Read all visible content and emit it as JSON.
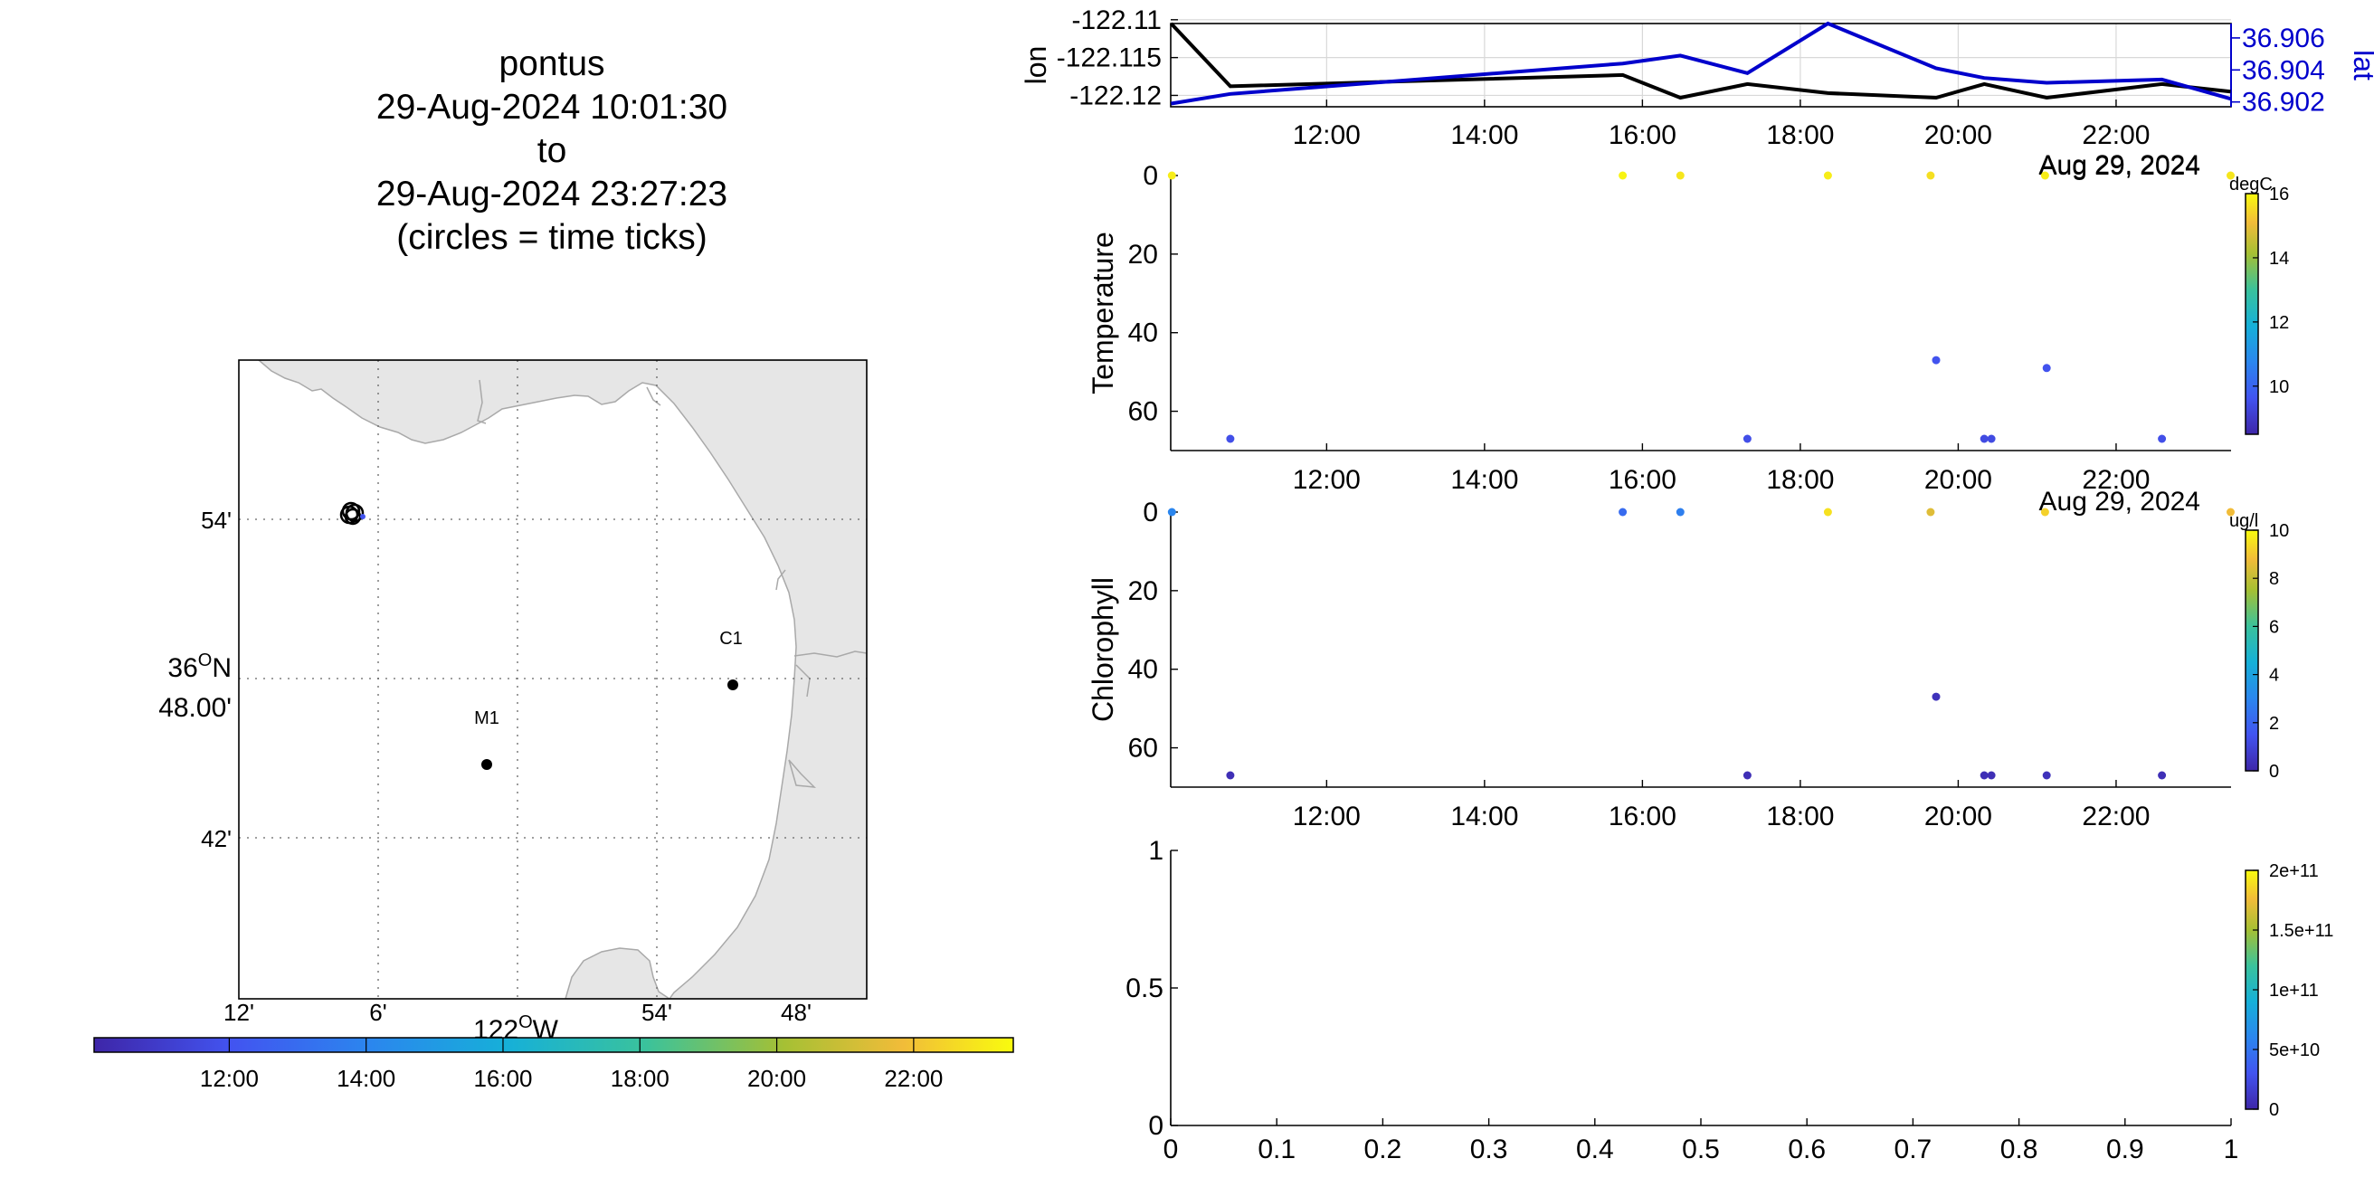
{
  "title": {
    "lines": [
      "pontus",
      "29-Aug-2024 10:01:30",
      "to",
      "29-Aug-2024 23:27:23",
      "(circles = time ticks)"
    ]
  },
  "map": {
    "lon_ticks": [
      "12'",
      "6'",
      "54'",
      "48'"
    ],
    "lon_major": "122",
    "lon_suffix": "W",
    "lat_ticks": [
      "54'",
      "42'"
    ],
    "lat_major": "36",
    "lat_suffix": "N",
    "lat_minutes": "48.00'",
    "moorings": [
      {
        "name": "M1",
        "lon": -121.982,
        "lat": 36.747
      },
      {
        "name": "C1",
        "lon": -121.846,
        "lat": 36.797
      }
    ],
    "track_position": {
      "lon": -122.118,
      "lat": 36.904
    }
  },
  "time_colorbar": {
    "ticks": [
      "12:00",
      "14:00",
      "16:00",
      "18:00",
      "20:00",
      "22:00"
    ],
    "range_hours": [
      10.025,
      23.456
    ]
  },
  "chart_data": [
    {
      "type": "line",
      "panel": "lon-lat",
      "ylabel": "lon",
      "ylabel_right": "lat",
      "x_ticks": [
        "12:00",
        "14:00",
        "16:00",
        "18:00",
        "20:00",
        "22:00"
      ],
      "xlim_hours": [
        10.025,
        23.456
      ],
      "y_ticks_left": [
        "-122.11",
        "-122.115",
        "-122.12"
      ],
      "ylim_left": [
        -122.1215,
        -122.1105
      ],
      "y_ticks_right": [
        "36.906",
        "36.904",
        "36.902"
      ],
      "ylim_right": [
        36.9017,
        36.9069
      ],
      "series": [
        {
          "name": "lon",
          "color": "#000000",
          "axis": "left",
          "x": [
            10.03,
            10.78,
            15.75,
            16.48,
            17.33,
            18.35,
            19.72,
            20.33,
            21.12,
            22.58,
            23.45
          ],
          "y": [
            -122.1105,
            -122.1188,
            -122.1173,
            -122.1203,
            -122.1185,
            -122.1197,
            -122.1203,
            -122.1185,
            -122.1203,
            -122.1185,
            -122.1195
          ]
        },
        {
          "name": "lat",
          "color": "#0000cc",
          "axis": "right",
          "x": [
            10.03,
            10.78,
            15.75,
            16.48,
            17.33,
            18.35,
            19.72,
            20.33,
            21.12,
            22.58,
            23.45
          ],
          "y": [
            36.9019,
            36.9025,
            36.9044,
            36.9049,
            36.9038,
            36.9069,
            36.9041,
            36.9035,
            36.9032,
            36.9034,
            36.9022
          ]
        }
      ],
      "date_label": "Aug 29, 2024"
    },
    {
      "type": "scatter",
      "panel": "temperature",
      "ylabel": "Temperature",
      "x_ticks": [
        "12:00",
        "14:00",
        "16:00",
        "18:00",
        "20:00",
        "22:00"
      ],
      "xlim_hours": [
        10.025,
        23.456
      ],
      "y_ticks": [
        "0",
        "20",
        "40",
        "60"
      ],
      "ylim": [
        0,
        70
      ],
      "y_reversed": true,
      "date_label": "Aug 29, 2024",
      "colorbar": {
        "unit": "degC",
        "ticks": [
          "16",
          "14",
          "12",
          "10"
        ],
        "range": [
          8.5,
          16
        ]
      },
      "points": [
        {
          "x": 10.04,
          "y": 0,
          "c": 15.8
        },
        {
          "x": 15.75,
          "y": 0,
          "c": 15.9
        },
        {
          "x": 16.48,
          "y": 0,
          "c": 15.7
        },
        {
          "x": 18.35,
          "y": 0,
          "c": 15.8
        },
        {
          "x": 19.65,
          "y": 0,
          "c": 15.6
        },
        {
          "x": 21.1,
          "y": 0,
          "c": 15.8
        },
        {
          "x": 23.45,
          "y": 0,
          "c": 15.7
        },
        {
          "x": 10.78,
          "y": 67,
          "c": 9.5
        },
        {
          "x": 17.33,
          "y": 67,
          "c": 9.5
        },
        {
          "x": 19.72,
          "y": 47,
          "c": 9.6
        },
        {
          "x": 20.33,
          "y": 67,
          "c": 9.4
        },
        {
          "x": 20.42,
          "y": 67,
          "c": 9.4
        },
        {
          "x": 21.12,
          "y": 49,
          "c": 9.6
        },
        {
          "x": 22.58,
          "y": 67,
          "c": 9.5
        }
      ]
    },
    {
      "type": "scatter",
      "panel": "chlorophyll",
      "ylabel": "Chlorophyll",
      "x_ticks": [
        "12:00",
        "14:00",
        "16:00",
        "18:00",
        "20:00",
        "22:00"
      ],
      "xlim_hours": [
        10.025,
        23.456
      ],
      "y_ticks": [
        "0",
        "20",
        "40",
        "60"
      ],
      "ylim": [
        0,
        70
      ],
      "y_reversed": true,
      "date_label": "Aug 29, 2024",
      "colorbar": {
        "unit": "ug/l",
        "ticks": [
          "10",
          "8",
          "6",
          "4",
          "2",
          "0"
        ],
        "range": [
          0,
          10
        ]
      },
      "points": [
        {
          "x": 10.04,
          "y": 0,
          "c": 3.0
        },
        {
          "x": 15.75,
          "y": 0,
          "c": 2.2
        },
        {
          "x": 16.48,
          "y": 0,
          "c": 2.8
        },
        {
          "x": 18.35,
          "y": 0,
          "c": 9.5
        },
        {
          "x": 19.65,
          "y": 0,
          "c": 8.5
        },
        {
          "x": 21.1,
          "y": 0,
          "c": 9.2
        },
        {
          "x": 23.45,
          "y": 0,
          "c": 8.8
        },
        {
          "x": 10.78,
          "y": 67,
          "c": 0.3
        },
        {
          "x": 17.33,
          "y": 67,
          "c": 0.3
        },
        {
          "x": 19.72,
          "y": 47,
          "c": 0.4
        },
        {
          "x": 20.33,
          "y": 67,
          "c": 0.3
        },
        {
          "x": 20.42,
          "y": 67,
          "c": 0.3
        },
        {
          "x": 21.12,
          "y": 67,
          "c": 0.4
        },
        {
          "x": 22.58,
          "y": 67,
          "c": 0.3
        }
      ]
    },
    {
      "type": "scatter",
      "panel": "empty",
      "x_ticks": [
        "0",
        "0.1",
        "0.2",
        "0.3",
        "0.4",
        "0.5",
        "0.6",
        "0.7",
        "0.8",
        "0.9",
        "1"
      ],
      "xlim": [
        0,
        1
      ],
      "y_ticks": [
        "1",
        "0.5",
        "0"
      ],
      "ylim": [
        0,
        1
      ],
      "colorbar": {
        "unit": "",
        "ticks": [
          "2e+11",
          "1.5e+11",
          "1e+11",
          "5e+10",
          "0"
        ],
        "range": [
          0,
          200000000000.0
        ]
      },
      "points": []
    }
  ]
}
